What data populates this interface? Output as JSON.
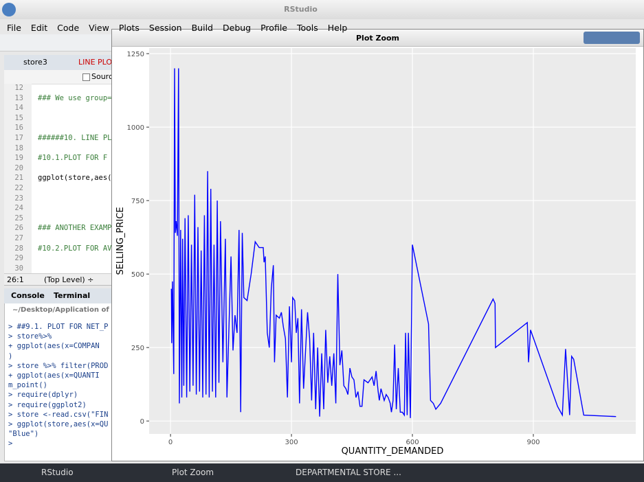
{
  "app": {
    "title": "RStudio",
    "menu": [
      "File",
      "Edit",
      "Code",
      "View",
      "Plots",
      "Session",
      "Build",
      "Debug",
      "Profile",
      "Tools",
      "Help"
    ],
    "editor": {
      "tabs": [
        "store3",
        "LINE PLOT"
      ],
      "source_label": "Source",
      "line_numbers": [
        "12",
        "13",
        "14",
        "15",
        "16",
        "17",
        "18",
        "19",
        "20",
        "21",
        "22",
        "23",
        "24",
        "25",
        "26",
        "27",
        "28",
        "29",
        "30"
      ],
      "code": [
        {
          "line": "13",
          "text": "### We use group="
        },
        {
          "line": "17",
          "text": "######10. LINE PL"
        },
        {
          "line": "19",
          "text": "#10.1.PLOT FOR  F"
        },
        {
          "line": "21",
          "text": "ggplot(store,aes("
        },
        {
          "line": "26",
          "text": "### ANOTHER EXAMP"
        },
        {
          "line": "28",
          "text": "#10.2.PLOT FOR AV"
        }
      ],
      "cursor": "26:1",
      "scope": "(Top Level) ÷"
    },
    "console": {
      "tabs": [
        "Console",
        "Terminal"
      ],
      "path": "~/Desktop/Application of",
      "lines": [
        "> ##9.1. PLOT FOR NET_P",
        "> store%>%",
        "+   ggplot(aes(x=COMPAN",
        ")",
        "> store %>% filter(PROD",
        "+   ggplot(aes(x=QUANTI",
        "m_point()",
        "> require(dplyr)",
        "> require(ggplot2)",
        "> store <-read.csv(\"FIN",
        "> ggplot(store,aes(x=QU",
        "\"Blue\")",
        ">"
      ]
    },
    "taskbar": [
      "RStudio",
      "Plot Zoom",
      "DEPARTMENTAL STORE ..."
    ]
  },
  "window": {
    "title": "Plot Zoom"
  },
  "chart_data": {
    "type": "line",
    "x_label": "QUANTITY_DEMANDED",
    "y_label": "SELLING_PRICE",
    "color": "#0000ff",
    "grid": true,
    "xlim": [
      -53,
      1154
    ],
    "ylim": [
      -44,
      1269
    ],
    "xticks": [
      0,
      300,
      600,
      900
    ],
    "yticks": [
      0,
      250,
      500,
      750,
      1000,
      1250
    ],
    "x": [
      2,
      3,
      5,
      8,
      10,
      12,
      14,
      17,
      20,
      22,
      25,
      28,
      30,
      33,
      36,
      40,
      44,
      48,
      52,
      56,
      60,
      64,
      68,
      72,
      76,
      80,
      84,
      88,
      92,
      96,
      100,
      104,
      108,
      112,
      116,
      120,
      124,
      130,
      136,
      140,
      150,
      155,
      160,
      165,
      170,
      174,
      178,
      182,
      190,
      200,
      210,
      220,
      230,
      232,
      235,
      240,
      245,
      250,
      255,
      258,
      262,
      270,
      275,
      280,
      285,
      290,
      295,
      300,
      303,
      308,
      312,
      316,
      320,
      325,
      330,
      340,
      345,
      350,
      355,
      360,
      365,
      370,
      375,
      380,
      385,
      390,
      395,
      400,
      405,
      410,
      415,
      420,
      425,
      430,
      435,
      440,
      445,
      450,
      455,
      460,
      465,
      470,
      475,
      480,
      490,
      500,
      505,
      510,
      515,
      518,
      522,
      526,
      530,
      535,
      540,
      545,
      548,
      552,
      556,
      560,
      565,
      570,
      575,
      580,
      583,
      587,
      590,
      595,
      600,
      640,
      645,
      652,
      658,
      670,
      800,
      805,
      806,
      885,
      888,
      893,
      960,
      972,
      980,
      990,
      995,
      1000,
      1025,
      1105
    ],
    "values": [
      450,
      265,
      475,
      160,
      1200,
      640,
      680,
      630,
      1200,
      60,
      650,
      80,
      620,
      120,
      690,
      80,
      700,
      100,
      600,
      120,
      770,
      90,
      660,
      100,
      580,
      80,
      700,
      90,
      850,
      80,
      790,
      100,
      600,
      80,
      750,
      130,
      680,
      200,
      620,
      80,
      560,
      240,
      360,
      300,
      650,
      30,
      640,
      420,
      410,
      500,
      610,
      590,
      590,
      540,
      560,
      300,
      250,
      450,
      530,
      200,
      360,
      350,
      370,
      320,
      280,
      80,
      390,
      200,
      420,
      410,
      300,
      350,
      60,
      380,
      110,
      370,
      280,
      70,
      300,
      40,
      250,
      15,
      230,
      40,
      310,
      130,
      220,
      120,
      230,
      60,
      500,
      190,
      240,
      120,
      110,
      90,
      180,
      150,
      140,
      80,
      100,
      50,
      50,
      140,
      130,
      150,
      120,
      170,
      100,
      70,
      110,
      90,
      70,
      90,
      80,
      60,
      30,
      70,
      260,
      40,
      180,
      30,
      30,
      20,
      300,
      20,
      300,
      10,
      600,
      330,
      70,
      60,
      40,
      60,
      415,
      400,
      250,
      335,
      200,
      310,
      50,
      20,
      245,
      20,
      220,
      210,
      20,
      15
    ]
  }
}
